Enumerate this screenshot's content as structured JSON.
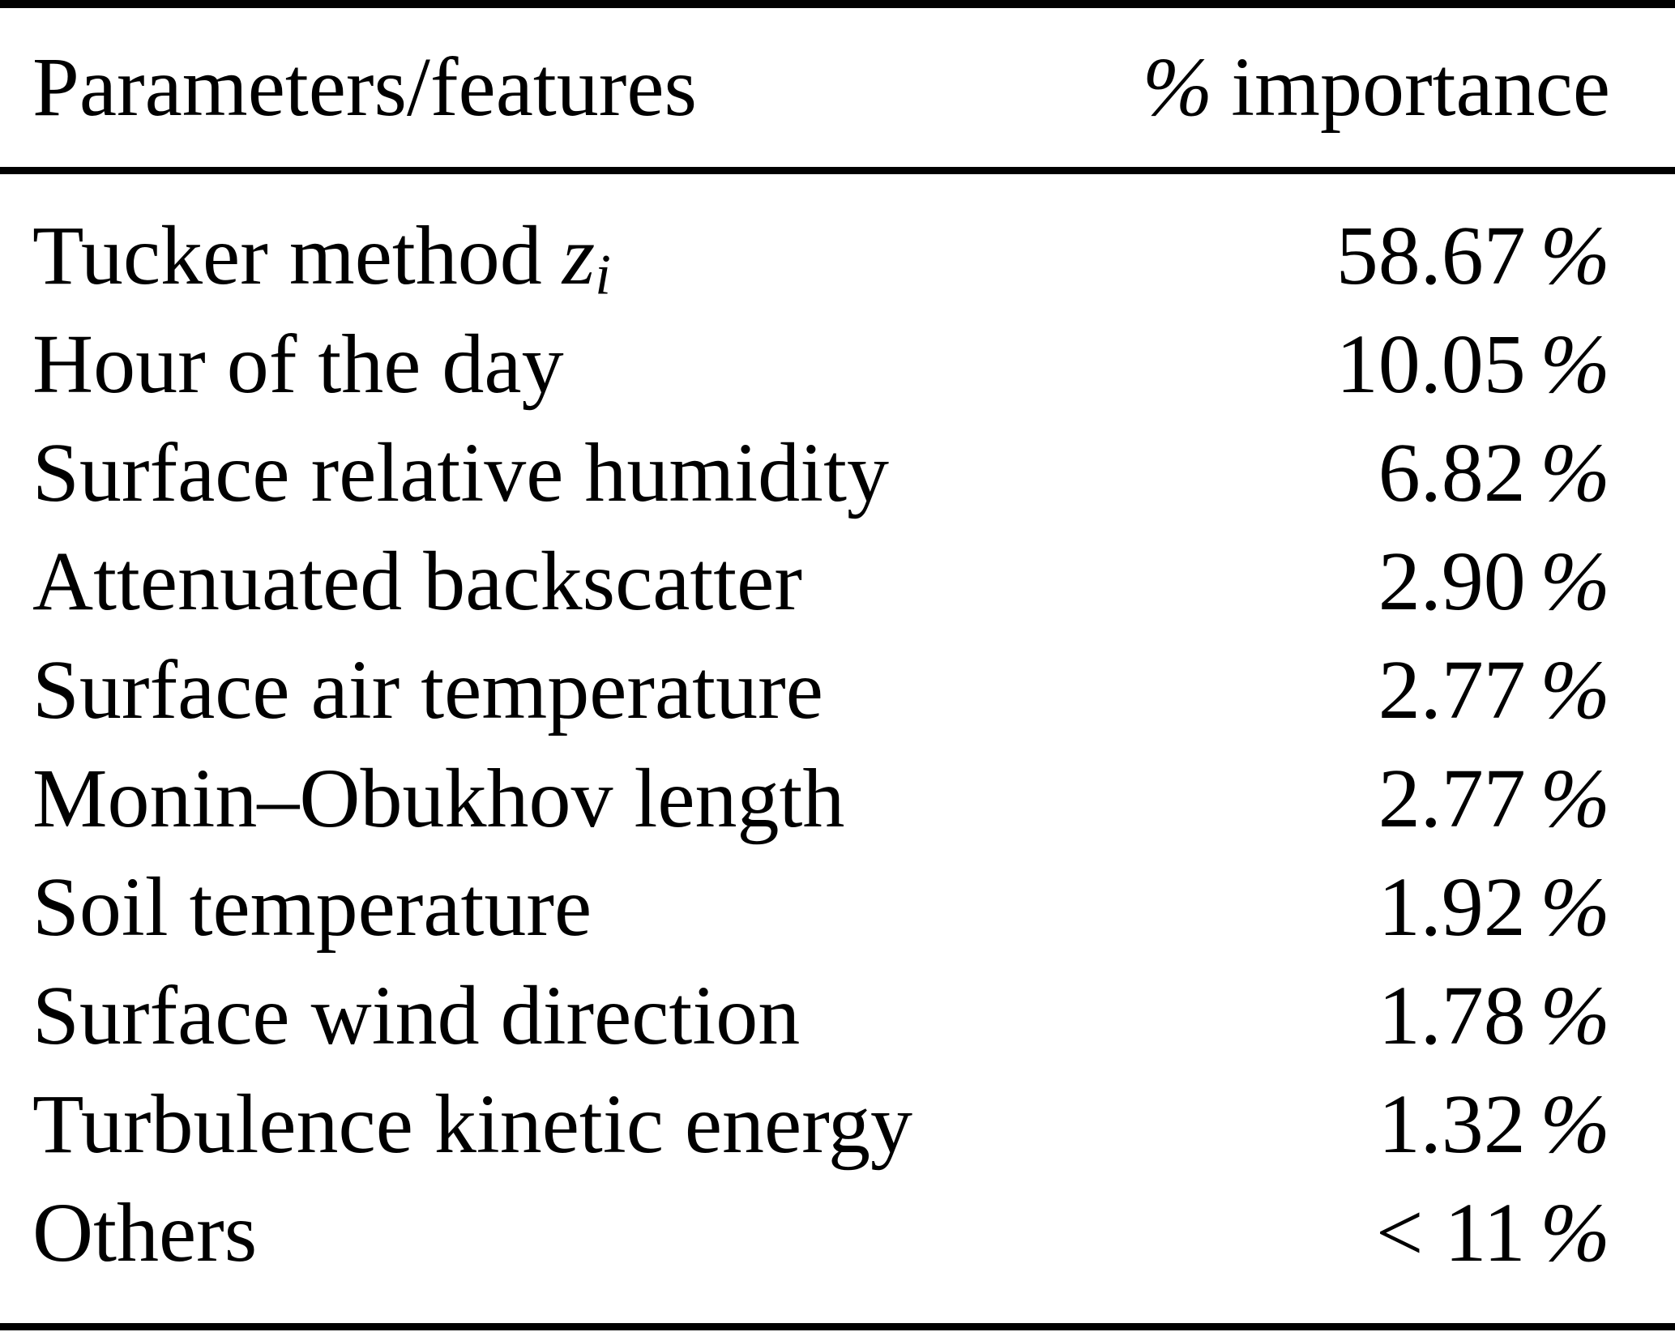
{
  "table": {
    "header": {
      "feature_col": "Parameters/features",
      "value_col_unit": "%",
      "value_col_label": "importance"
    },
    "rows": [
      {
        "feature": "Tucker method",
        "math_base": "z",
        "math_sub": "i",
        "value": "58.67",
        "unit": "%"
      },
      {
        "feature": "Hour of the day",
        "value": "10.05",
        "unit": "%"
      },
      {
        "feature": "Surface relative humidity",
        "value": "6.82",
        "unit": "%"
      },
      {
        "feature": "Attenuated backscatter",
        "value": "2.90",
        "unit": "%"
      },
      {
        "feature": "Surface air temperature",
        "value": "2.77",
        "unit": "%"
      },
      {
        "feature": "Monin–Obukhov length",
        "value": "2.77",
        "unit": "%"
      },
      {
        "feature": "Soil temperature",
        "value": "1.92",
        "unit": "%"
      },
      {
        "feature": "Surface wind direction",
        "value": "1.78",
        "unit": "%"
      },
      {
        "feature": "Turbulence kinetic energy",
        "value": "1.32",
        "unit": "%"
      },
      {
        "feature": "Others",
        "value": "< 11",
        "unit": "%"
      }
    ]
  }
}
